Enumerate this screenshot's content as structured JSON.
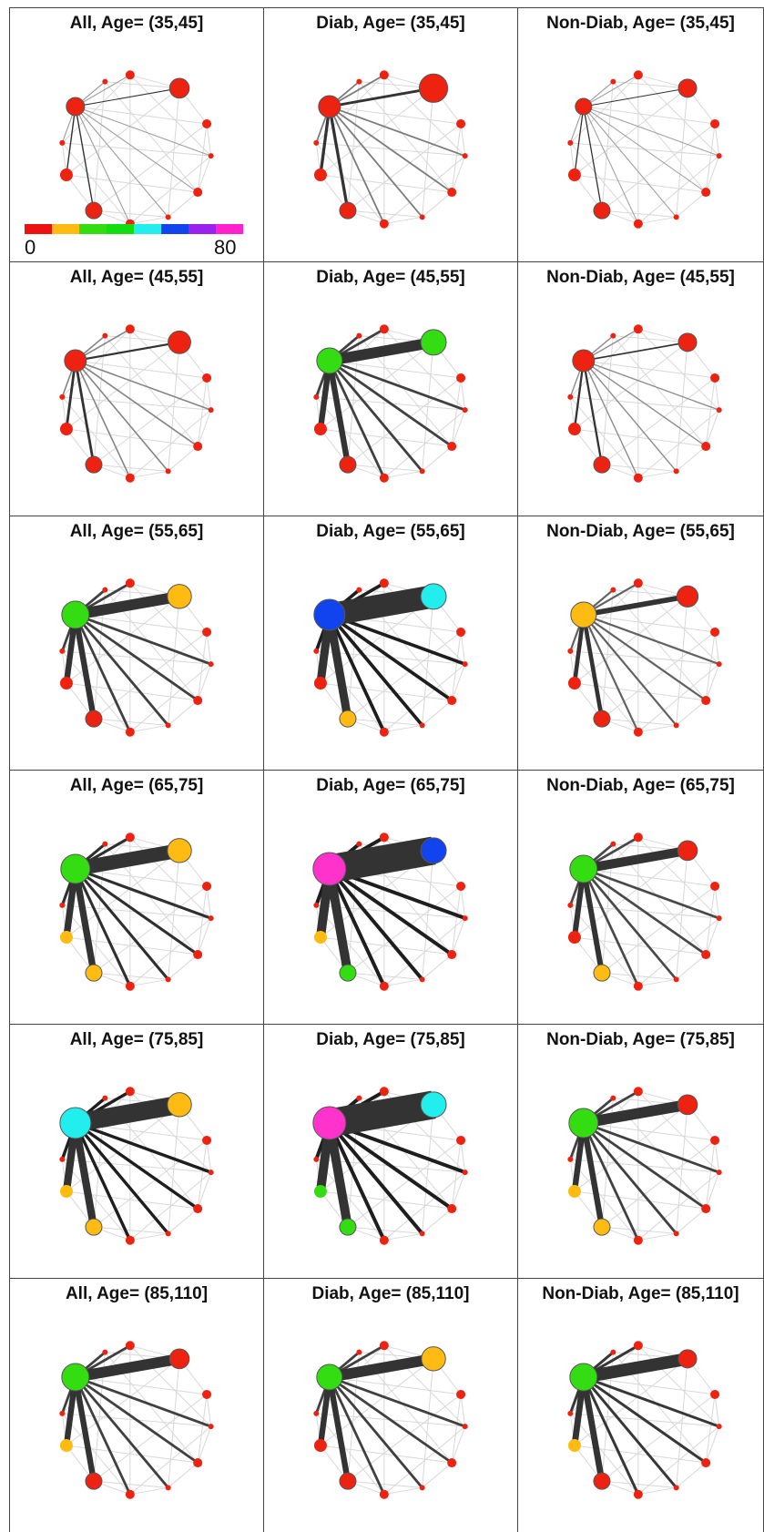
{
  "panels": [
    {
      "title": "All, Age= (35,45]",
      "level": 0,
      "hub": 10,
      "hubColor": "#ee2211",
      "top": 6,
      "topColor": "#ee2211",
      "topSize": 0.6,
      "low": [
        7,
        8
      ],
      "lowColors": [
        "#ee2211",
        "#ee2211"
      ],
      "strength": 0.05
    },
    {
      "title": "Diab, Age= (35,45]",
      "level": 1,
      "hub": 12,
      "hubColor": "#ee2211",
      "top": 14,
      "topColor": "#ee2211",
      "topSize": 1.2,
      "low": [
        7,
        8
      ],
      "lowColors": [
        "#ee2211",
        "#ee2211"
      ],
      "strength": 0.25
    },
    {
      "title": "Non-Diab, Age= (35,45]",
      "level": 0,
      "hub": 9,
      "hubColor": "#ee2211",
      "top": 5,
      "topColor": "#ee2211",
      "topSize": 0.5,
      "low": [
        7,
        8
      ],
      "lowColors": [
        "#ee2211",
        "#ee2211"
      ],
      "strength": 0.03
    },
    {
      "title": "All, Age= (45,55]",
      "level": 1,
      "hub": 12,
      "hubColor": "#ee2211",
      "top": 9,
      "topColor": "#ee2211",
      "topSize": 0.8,
      "low": [
        7,
        8
      ],
      "lowColors": [
        "#ee2211",
        "#ee2211"
      ],
      "strength": 0.2
    },
    {
      "title": "Diab, Age= (45,55]",
      "level": 2,
      "hub": 14,
      "hubColor": "#33dd11",
      "top": 14,
      "topColor": "#33dd11",
      "topSize": 1.0,
      "low": [
        7,
        8
      ],
      "lowColors": [
        "#ee2211",
        "#ee2211"
      ],
      "strength": 0.6
    },
    {
      "title": "Non-Diab, Age= (45,55]",
      "level": 1,
      "hub": 12,
      "hubColor": "#ee2211",
      "top": 6,
      "topColor": "#ee2211",
      "topSize": 0.5,
      "low": [
        7,
        8
      ],
      "lowColors": [
        "#ee2211",
        "#ee2211"
      ],
      "strength": 0.15
    },
    {
      "title": "All, Age= (55,65]",
      "level": 2,
      "hub": 15,
      "hubColor": "#33dd11",
      "top": 11,
      "topColor": "#ffbb11",
      "topSize": 0.9,
      "low": [
        7,
        8
      ],
      "lowColors": [
        "#ee2211",
        "#ee2211"
      ],
      "strength": 0.6
    },
    {
      "title": "Diab, Age= (55,65]",
      "level": 3,
      "hub": 17,
      "hubColor": "#1144ee",
      "top": 16,
      "topColor": "#22eeee",
      "topSize": 1.0,
      "low": [
        7,
        8
      ],
      "lowColors": [
        "#ffbb11",
        "#ee2211"
      ],
      "strength": 0.9
    },
    {
      "title": "Non-Diab, Age= (55,65]",
      "level": 2,
      "hub": 14,
      "hubColor": "#ffbb11",
      "top": 7,
      "topColor": "#ee2211",
      "topSize": 0.7,
      "low": [
        7,
        8
      ],
      "lowColors": [
        "#ee2211",
        "#ee2211"
      ],
      "strength": 0.4
    },
    {
      "title": "All, Age= (65,75]",
      "level": 2,
      "hub": 16,
      "hubColor": "#33dd11",
      "top": 11,
      "topColor": "#ffbb11",
      "topSize": 0.9,
      "low": [
        7,
        8
      ],
      "lowColors": [
        "#ffbb11",
        "#ffbb11"
      ],
      "strength": 0.7
    },
    {
      "title": "Diab, Age= (65,75]",
      "level": 3,
      "hub": 18,
      "hubColor": "#ff33cc",
      "top": 16,
      "topColor": "#1144ee",
      "topSize": 1.0,
      "low": [
        7,
        8
      ],
      "lowColors": [
        "#33dd11",
        "#ffbb11"
      ],
      "strength": 1.0
    },
    {
      "title": "Non-Diab, Age= (65,75]",
      "level": 2,
      "hub": 15,
      "hubColor": "#33dd11",
      "top": 7,
      "topColor": "#ee2211",
      "topSize": 0.6,
      "low": [
        7,
        8
      ],
      "lowColors": [
        "#ffbb11",
        "#ee2211"
      ],
      "strength": 0.55
    },
    {
      "title": "All, Age= (75,85]",
      "level": 3,
      "hub": 17,
      "hubColor": "#22eeee",
      "top": 11,
      "topColor": "#ffbb11",
      "topSize": 0.9,
      "low": [
        7,
        8
      ],
      "lowColors": [
        "#ffbb11",
        "#ffbb11"
      ],
      "strength": 0.8
    },
    {
      "title": "Diab, Age= (75,85]",
      "level": 3,
      "hub": 18,
      "hubColor": "#ff33cc",
      "top": 15,
      "topColor": "#22eeee",
      "topSize": 1.0,
      "low": [
        7,
        8
      ],
      "lowColors": [
        "#33dd11",
        "#33dd11"
      ],
      "strength": 1.0
    },
    {
      "title": "Non-Diab, Age= (75,85]",
      "level": 3,
      "hub": 16,
      "hubColor": "#33dd11",
      "top": 7,
      "topColor": "#ee2211",
      "topSize": 0.6,
      "low": [
        7,
        8
      ],
      "lowColors": [
        "#ffbb11",
        "#ffbb11"
      ],
      "strength": 0.6
    },
    {
      "title": "All, Age= (85,110]",
      "level": 2,
      "hub": 15,
      "hubColor": "#33dd11",
      "top": 7,
      "topColor": "#ee2211",
      "topSize": 0.6,
      "low": [
        7,
        8
      ],
      "lowColors": [
        "#ee2211",
        "#ffbb11"
      ],
      "strength": 0.6
    },
    {
      "title": "Diab, Age= (85,110]",
      "level": 2,
      "hub": 14,
      "hubColor": "#33dd11",
      "top": 11,
      "topColor": "#ffbb11",
      "topSize": 0.9,
      "low": [
        7,
        8
      ],
      "lowColors": [
        "#ee2211",
        "#ee2211"
      ],
      "strength": 0.6
    },
    {
      "title": "Non-Diab, Age= (85,110]",
      "level": 2,
      "hub": 15,
      "hubColor": "#33dd11",
      "top": 6,
      "topColor": "#ee2211",
      "topSize": 0.5,
      "low": [
        7,
        8
      ],
      "lowColors": [
        "#ee2211",
        "#ffbb11"
      ],
      "strength": 0.65
    }
  ],
  "legend": {
    "min_label": "0",
    "max_label": "80",
    "colors": [
      "#ee1111",
      "#ffbb11",
      "#33dd11",
      "#11dd11",
      "#22eeee",
      "#1144ee",
      "#9922ee",
      "#ff22cc"
    ]
  }
}
